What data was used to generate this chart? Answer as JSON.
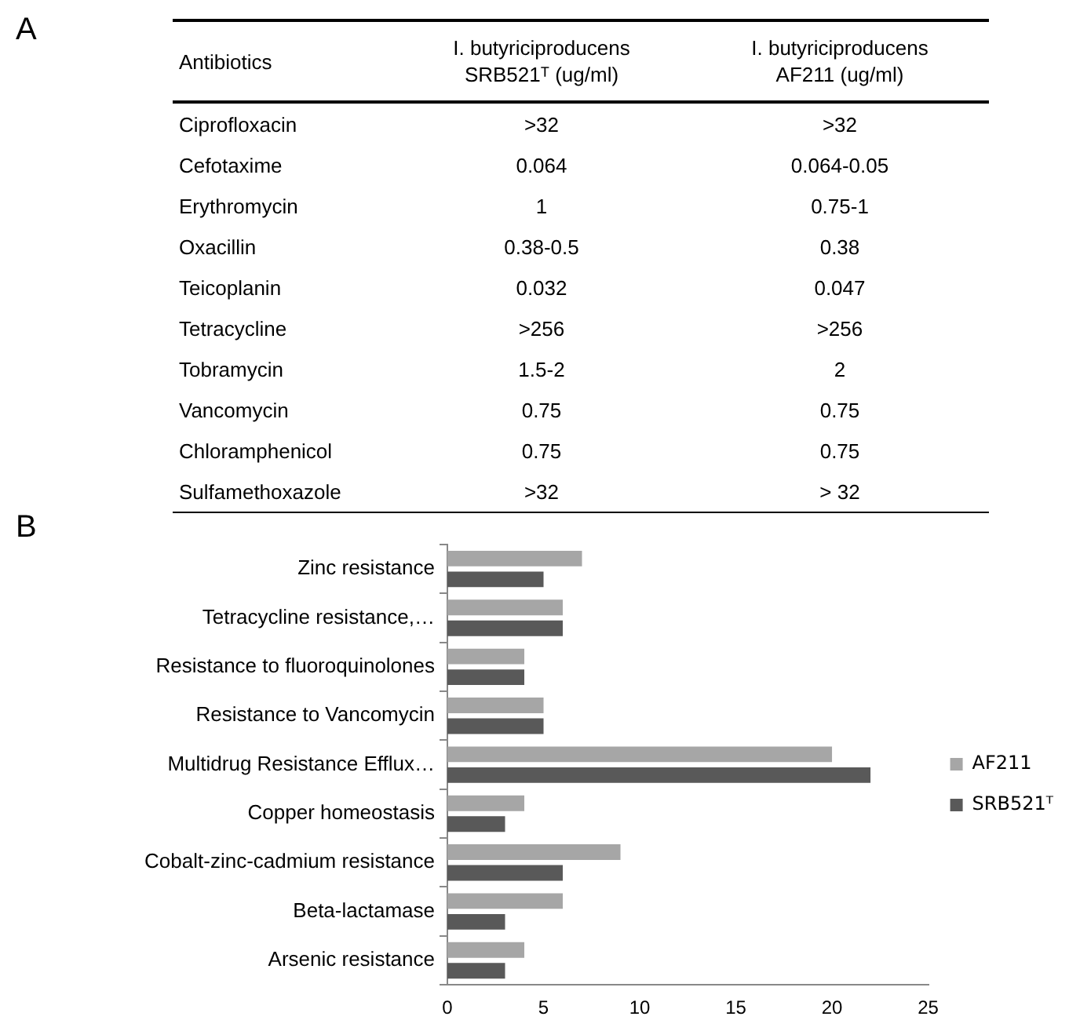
{
  "chart_data": [
    {
      "type": "other",
      "title": "A",
      "xlabel": "Antibiotics",
      "categories": [
        "Ciprofloxacin",
        "Cefotaxime",
        "Erythromycin",
        "Oxacillin",
        "Teicoplanin",
        "Tetracycline",
        "Tobramycin",
        "Vancomycin",
        "Chloramphenicol",
        "Sulfamethoxazole"
      ],
      "series": [
        {
          "name": "I. butyriciproducens SRB521ᵀ (ug/ml)",
          "values": [
            null,
            null,
            null,
            null,
            null,
            null,
            null,
            null,
            null,
            null
          ],
          "value_labels": [
            ">32",
            "0.064",
            "1",
            "0.38-0.5",
            "0.032",
            ">256",
            "1.5-2",
            "0.75",
            "0.75",
            ">32"
          ]
        },
        {
          "name": "I. butyriciproducens AF211 (ug/ml)",
          "values": [
            null,
            null,
            null,
            null,
            null,
            null,
            null,
            null,
            null,
            null
          ],
          "value_labels": [
            ">32",
            "0.064-0.05",
            "0.75-1",
            "0.38",
            "0.047",
            ">256",
            "2",
            "0.75",
            "0.75",
            "> 32"
          ]
        }
      ]
    },
    {
      "type": "bar",
      "orientation": "horizontal",
      "title": "B",
      "categories": [
        "Zinc resistance",
        "Tetracycline resistance,…",
        "Resistance to fluoroquinolones",
        "Resistance to Vancomycin",
        "Multidrug Resistance Efflux…",
        "Copper homeostasis",
        "Cobalt-zinc-cadmium resistance",
        "Beta-lactamase",
        "Arsenic resistance"
      ],
      "series": [
        {
          "name": "AF211",
          "color": "#a6a6a6",
          "values": [
            7,
            6,
            4,
            5,
            20,
            4,
            9,
            6,
            4
          ]
        },
        {
          "name": "SRB521ᵀ",
          "color": "#595959",
          "values": [
            5,
            6,
            4,
            5,
            22,
            3,
            6,
            3,
            3
          ]
        }
      ],
      "xlim": [
        0,
        25
      ],
      "xticks": [
        0,
        5,
        10,
        15,
        20,
        25
      ],
      "grid": false,
      "legend": "right"
    }
  ]
}
